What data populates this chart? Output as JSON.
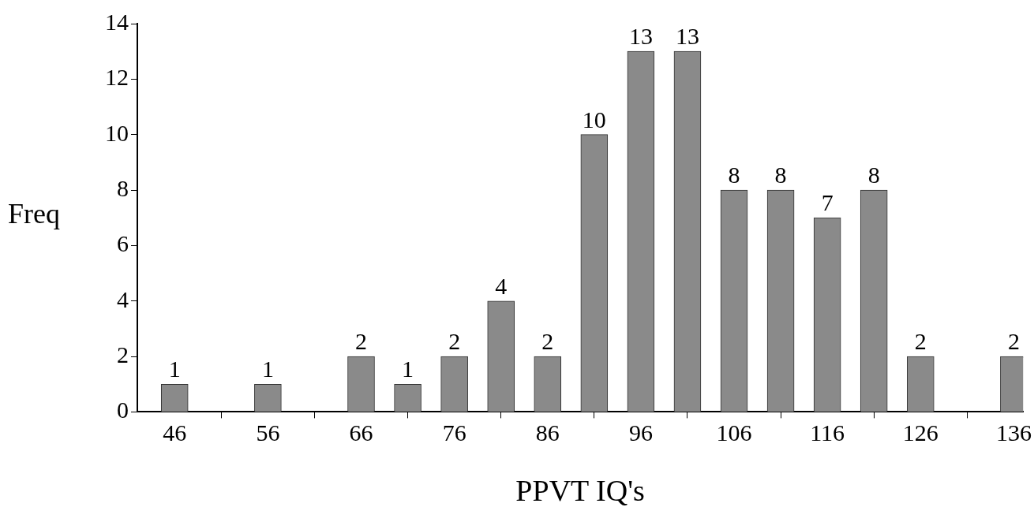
{
  "chart_data": {
    "type": "bar",
    "xlabel": "PPVT IQ's",
    "ylabel": "Freq",
    "x": [
      46,
      56,
      66,
      71,
      76,
      81,
      86,
      91,
      96,
      101,
      106,
      111,
      116,
      121,
      126,
      136
    ],
    "values": [
      1,
      1,
      2,
      1,
      2,
      4,
      2,
      10,
      13,
      13,
      8,
      8,
      7,
      8,
      2,
      2
    ],
    "color": "#8a8a8a",
    "data_labels": true,
    "grid": false,
    "legend": false,
    "xlim": [
      42,
      137
    ],
    "xticks": [
      46,
      56,
      66,
      76,
      86,
      96,
      106,
      116,
      126,
      136
    ],
    "ylim": [
      0,
      14
    ],
    "yticks": [
      0,
      2,
      4,
      6,
      8,
      10,
      12,
      14
    ]
  }
}
